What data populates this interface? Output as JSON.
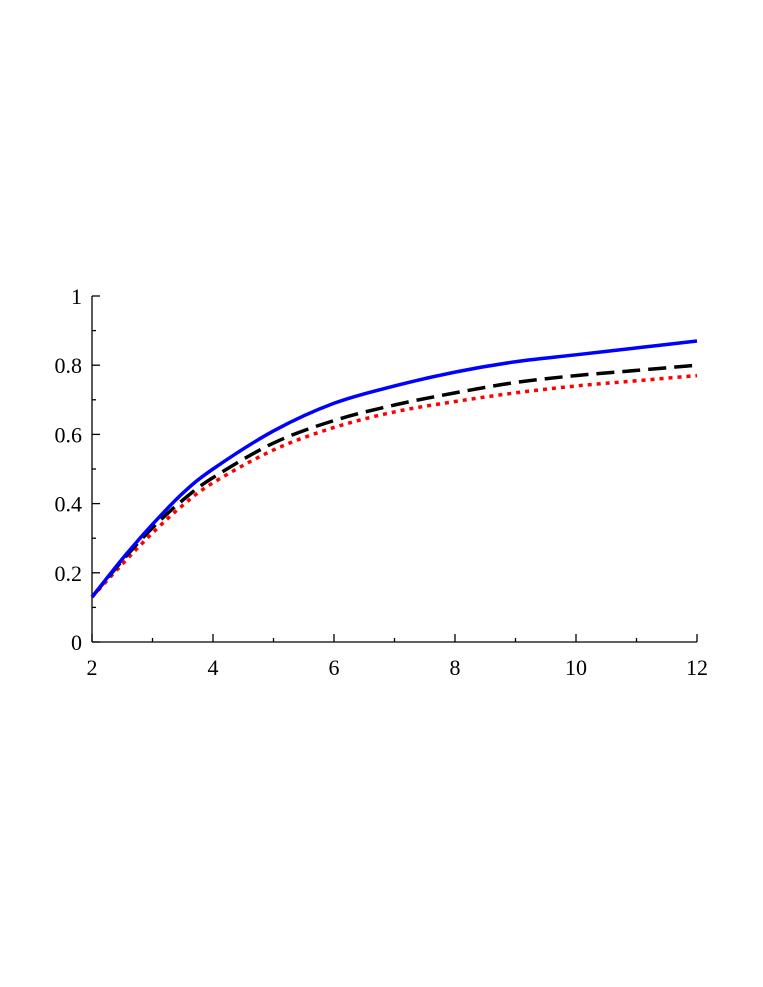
{
  "chart_data": {
    "type": "line",
    "title": "",
    "xlabel": "",
    "ylabel": "",
    "xlim": [
      2,
      12
    ],
    "ylim": [
      0,
      1
    ],
    "x_ticks": [
      2,
      4,
      6,
      8,
      10,
      12
    ],
    "x_tick_labels": [
      "2",
      "4",
      "6",
      "8",
      "10",
      "12"
    ],
    "y_ticks": [
      0,
      0.2,
      0.4,
      0.6,
      0.8,
      1
    ],
    "y_tick_labels": [
      "0",
      "0.2",
      "0.4",
      "0.6",
      "0.8",
      "1"
    ],
    "x_minor_step": 1,
    "y_minor_step": 0.1,
    "grid": false,
    "legend": "none",
    "x": [
      2,
      2.5,
      3,
      3.5,
      4,
      5,
      6,
      7,
      8,
      9,
      10,
      11,
      12
    ],
    "series": [
      {
        "color": "#0000ff",
        "style": "solid",
        "values": [
          0.13,
          0.24,
          0.34,
          0.43,
          0.5,
          0.61,
          0.69,
          0.74,
          0.78,
          0.81,
          0.83,
          0.85,
          0.87
        ]
      },
      {
        "color": "#000000",
        "style": "dashed",
        "values": [
          0.13,
          0.235,
          0.33,
          0.41,
          0.475,
          0.575,
          0.64,
          0.685,
          0.72,
          0.75,
          0.77,
          0.785,
          0.8
        ]
      },
      {
        "color": "#ff0000",
        "style": "dotted",
        "values": [
          0.13,
          0.225,
          0.315,
          0.395,
          0.46,
          0.555,
          0.62,
          0.665,
          0.695,
          0.72,
          0.74,
          0.755,
          0.77
        ]
      }
    ]
  }
}
